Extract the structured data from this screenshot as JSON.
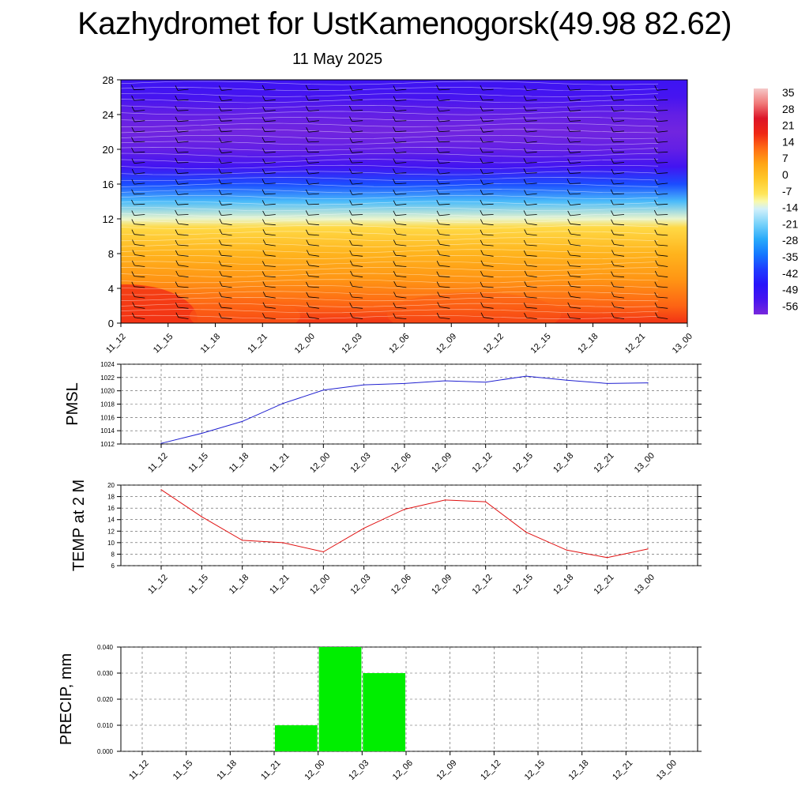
{
  "title": "Kazhydromet for UstKamenogorsk(49.98 82.62)",
  "subtitle": "11 May 2025",
  "palette": {
    "pmsl_line": "#2020d0",
    "temp_line": "#e01010",
    "precip_bar": "#00ee00",
    "grid": "#555555"
  },
  "chart_data": [
    {
      "type": "heatmap",
      "title": "",
      "ylabel": "",
      "x_ticks": [
        "11_12",
        "11_15",
        "11_18",
        "11_21",
        "12_00",
        "12_03",
        "12_06",
        "12_09",
        "12_12",
        "12_15",
        "12_18",
        "12_21",
        "13_00"
      ],
      "y_ticks": [
        0,
        4,
        8,
        12,
        16,
        20,
        24,
        28
      ],
      "ylim": [
        0,
        28
      ],
      "colorbar": {
        "labels": [
          "35",
          "28",
          "21",
          "14",
          "7",
          "0",
          "-7",
          "-14",
          "-21",
          "-28",
          "-35",
          "-42",
          "-49",
          "-56"
        ],
        "range": [
          -63,
          42
        ]
      },
      "temperature_profile": [
        {
          "height": 0,
          "value": 20
        },
        {
          "height": 2,
          "value": 15
        },
        {
          "height": 5,
          "value": 9
        },
        {
          "height": 8,
          "value": 4
        },
        {
          "height": 11,
          "value": -4
        },
        {
          "height": 12,
          "value": -12
        },
        {
          "height": 14,
          "value": -25
        },
        {
          "height": 16,
          "value": -40
        },
        {
          "height": 18,
          "value": -55
        },
        {
          "height": 20,
          "value": -60
        },
        {
          "height": 22,
          "value": -62
        },
        {
          "height": 24,
          "value": -60
        },
        {
          "height": 26,
          "value": -56
        },
        {
          "height": 28,
          "value": -54
        }
      ],
      "overlay": "wind barbs"
    },
    {
      "type": "line",
      "ylabel": "PMSL",
      "x": [
        "11_12",
        "11_15",
        "11_18",
        "11_21",
        "12_00",
        "12_03",
        "12_06",
        "12_09",
        "12_12",
        "12_15",
        "12_18",
        "12_21",
        "13_00"
      ],
      "y_ticks": [
        1012,
        1014,
        1016,
        1018,
        1020,
        1022,
        1024
      ],
      "ylim": [
        1012,
        1024
      ],
      "series": [
        {
          "values": [
            1012.1,
            1013.6,
            1015.4,
            1018.1,
            1020.1,
            1020.9,
            1021.1,
            1021.5,
            1021.3,
            1022.2,
            1021.6,
            1021.1,
            1021.2
          ]
        }
      ]
    },
    {
      "type": "line",
      "ylabel": "TEMP at 2 M",
      "x": [
        "11_12",
        "11_15",
        "11_18",
        "11_21",
        "12_00",
        "12_03",
        "12_06",
        "12_09",
        "12_12",
        "12_15",
        "12_18",
        "12_21",
        "13_00"
      ],
      "y_ticks": [
        6,
        8,
        10,
        12,
        14,
        16,
        18,
        20
      ],
      "ylim": [
        6,
        20
      ],
      "series": [
        {
          "values": [
            19.2,
            14.5,
            10.4,
            10.0,
            8.4,
            12.5,
            15.8,
            17.4,
            17.1,
            11.8,
            8.7,
            7.4,
            8.9
          ]
        }
      ]
    },
    {
      "type": "bar",
      "ylabel": "PRECIP, mm",
      "categories": [
        "11_12",
        "11_15",
        "11_18",
        "11_21",
        "12_00",
        "12_03",
        "12_06",
        "12_09",
        "12_12",
        "12_15",
        "12_18",
        "12_21",
        "13_00"
      ],
      "y_ticks": [
        "0.000",
        "0.010",
        "0.020",
        "0.030",
        "0.040"
      ],
      "ylim": [
        0,
        0.04
      ],
      "values": [
        0,
        0,
        0,
        0.01,
        0.04,
        0.03,
        0,
        0,
        0,
        0,
        0,
        0,
        0
      ]
    }
  ]
}
